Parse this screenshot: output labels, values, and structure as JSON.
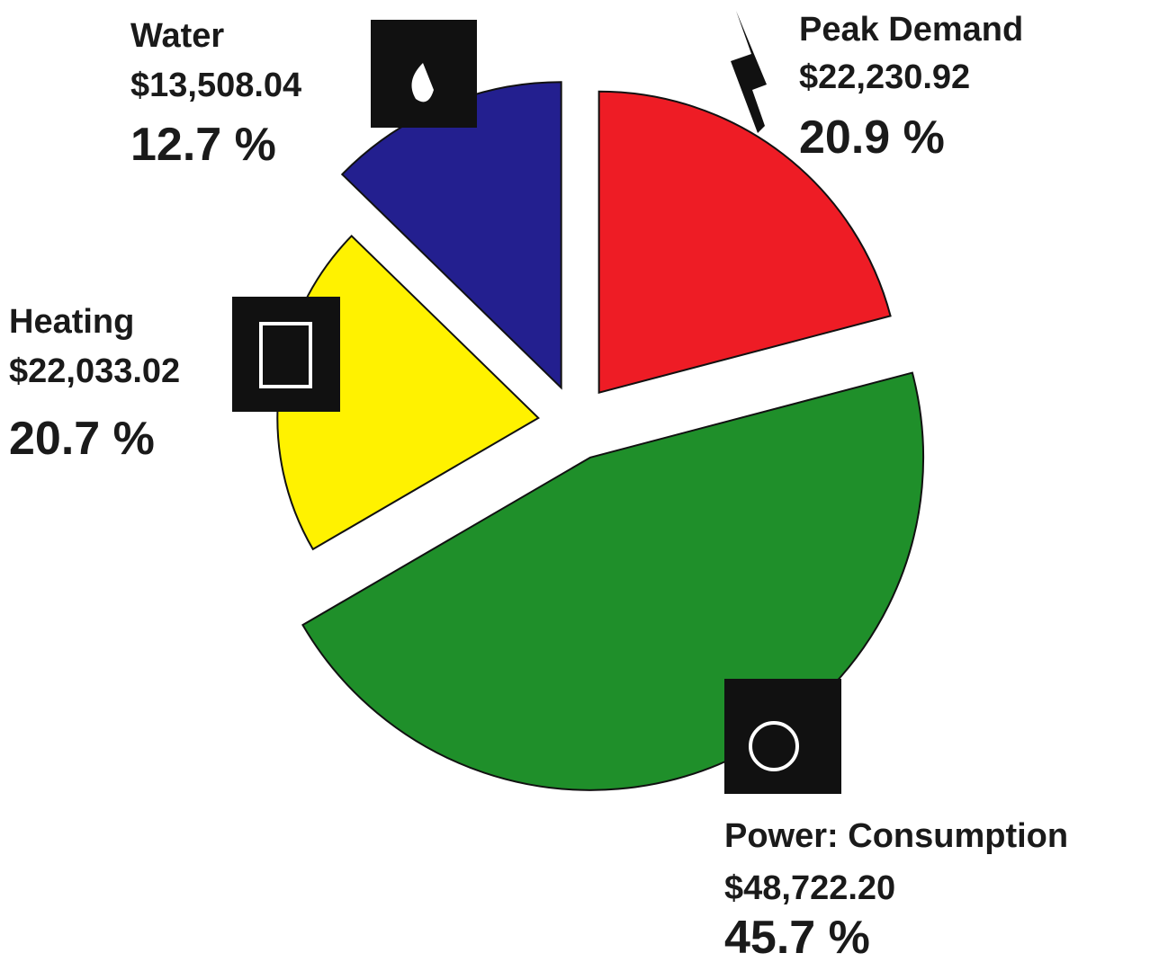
{
  "chart_data": {
    "type": "pie",
    "categories": [
      "Peak Demand",
      "Power: Consumption",
      "Heating",
      "Water"
    ],
    "amounts": [
      "$22,230.92",
      "$48,722.20",
      "$22,033.02",
      "$13,508.04"
    ],
    "values": [
      20.9,
      45.7,
      20.7,
      12.7
    ],
    "value_labels": [
      "20.9 %",
      "45.7 %",
      "20.7 %",
      "12.7 %"
    ],
    "colors": [
      "#ee1c25",
      "#1f8f2a",
      "#fff200",
      "#231f8f"
    ]
  }
}
